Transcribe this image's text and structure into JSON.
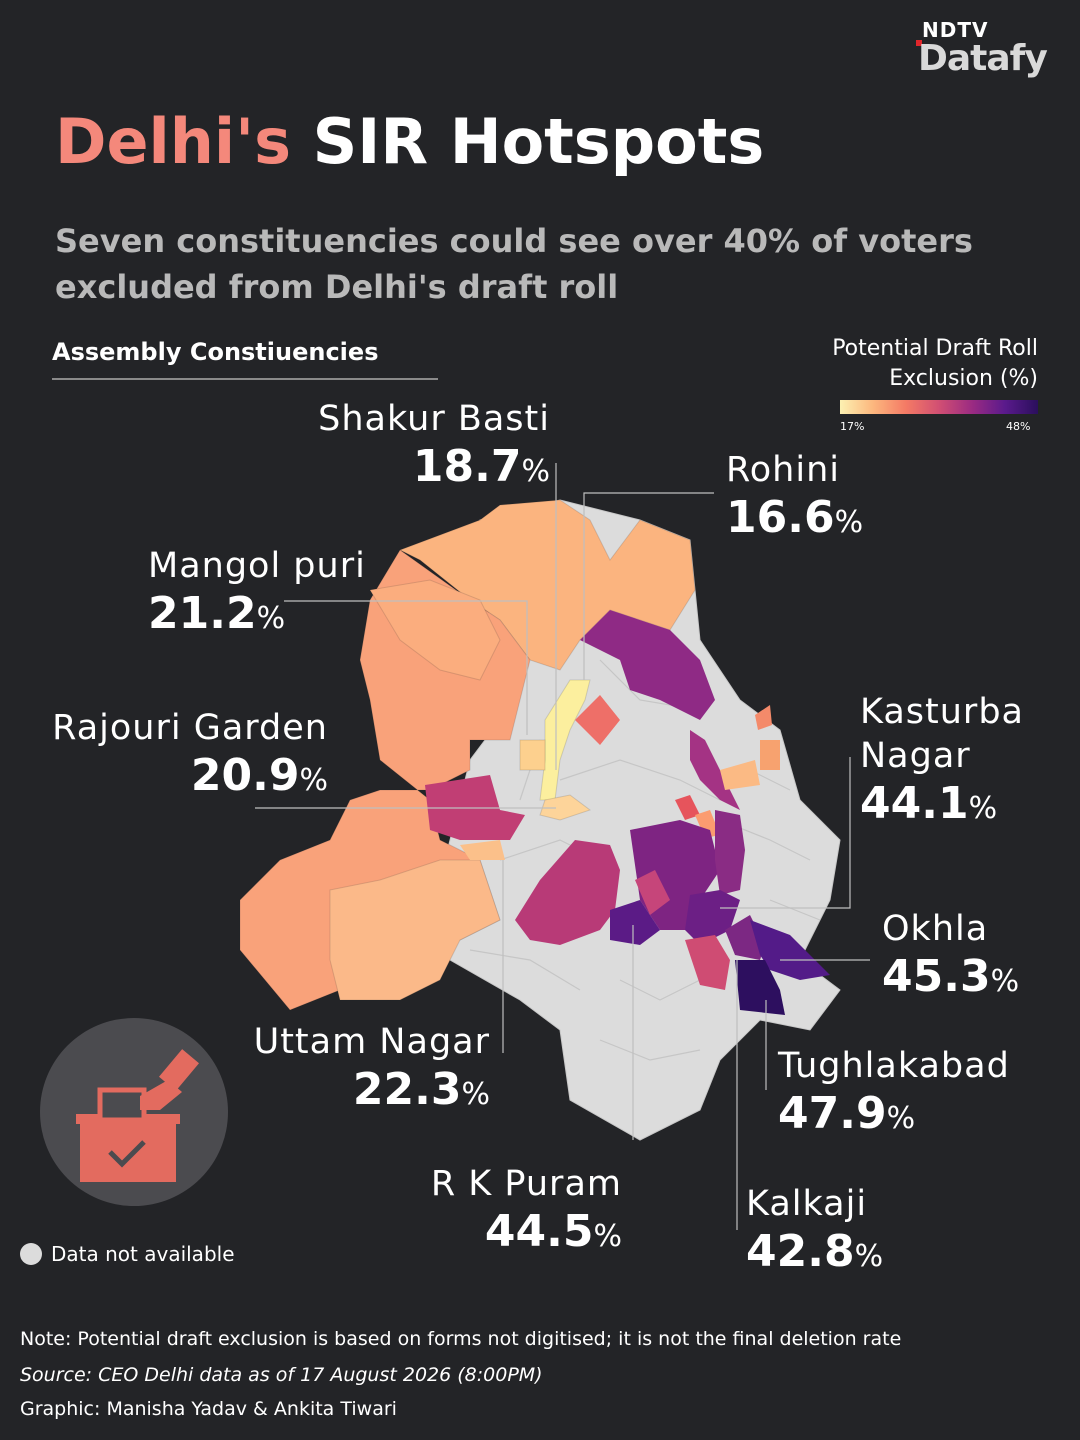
{
  "brand": {
    "top": "NDTV",
    "main": "Datafy"
  },
  "title": {
    "highlight": "Delhi's",
    "rest": "SIR Hotspots"
  },
  "subtitle": "Seven constituencies could see over 40% of voters excluded from Delhi's draft roll",
  "section_label": "Assembly Constiuencies",
  "legend": {
    "title": "Potential Draft Roll Exclusion (%)",
    "min_label": "17%",
    "max_label": "48%",
    "min": 17,
    "max": 48
  },
  "colors": {
    "background": "#232427",
    "no_data": "#dcdcdc",
    "highlight": "#f4887b",
    "scale": [
      "#fcf1b2",
      "#fcb77e",
      "#f47a65",
      "#d14f73",
      "#9b2b82",
      "#5a1a8c",
      "#2a0f5c"
    ]
  },
  "constituencies": [
    {
      "name": "Shakur Basti",
      "value": "18.7",
      "unit": "%",
      "pct": 18.7
    },
    {
      "name": "Rohini",
      "value": "16.6",
      "unit": "%",
      "pct": 16.6
    },
    {
      "name": "Mangol puri",
      "value": "21.2",
      "unit": "%",
      "pct": 21.2
    },
    {
      "name": "Rajouri Garden",
      "value": "20.9",
      "unit": "%",
      "pct": 20.9
    },
    {
      "name": "Kasturba Nagar",
      "value": "44.1",
      "unit": "%",
      "pct": 44.1
    },
    {
      "name": "Okhla",
      "value": "45.3",
      "unit": "%",
      "pct": 45.3
    },
    {
      "name": "Uttam Nagar",
      "value": "22.3",
      "unit": "%",
      "pct": 22.3
    },
    {
      "name": "Tughlakabad",
      "value": "47.9",
      "unit": "%",
      "pct": 47.9
    },
    {
      "name": "R K Puram",
      "value": "44.5",
      "unit": "%",
      "pct": 44.5
    },
    {
      "name": "Kalkaji",
      "value": "42.8",
      "unit": "%",
      "pct": 42.8
    }
  ],
  "no_data_label": "Data not available",
  "icon": "ballot-box-icon",
  "footer": {
    "note": "Note: Potential draft exclusion is based on forms not digitised; it is not the final deletion rate",
    "source": "Source: CEO Delhi data as of 17 August 2026 (8:00PM)",
    "credit": "Graphic: Manisha Yadav & Ankita Tiwari"
  }
}
